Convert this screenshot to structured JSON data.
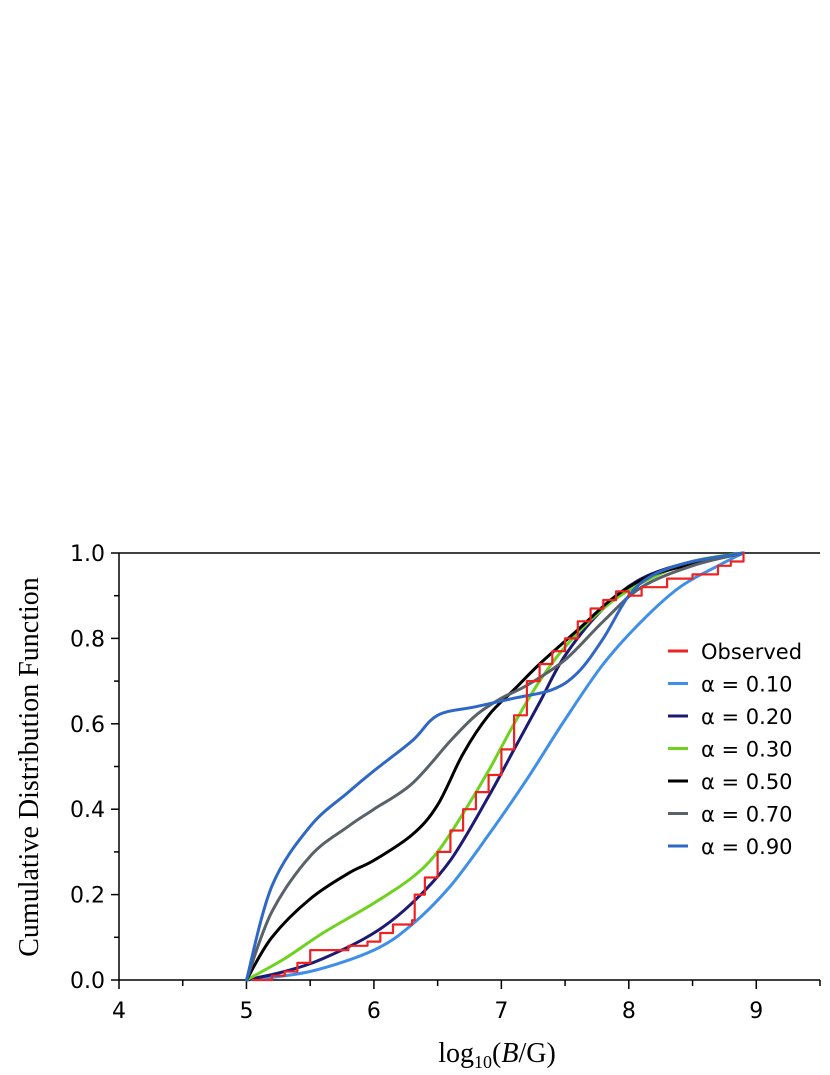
{
  "chart_data": {
    "type": "line",
    "title": "",
    "xlabel": "log10(B/G)",
    "ylabel": "Cumulative Distribution Function",
    "xlim": [
      4,
      9.5
    ],
    "ylim": [
      0,
      1.0
    ],
    "xticks": [
      "4",
      "5",
      "6",
      "7",
      "8",
      "9"
    ],
    "xtick_values": [
      4,
      5,
      6,
      7,
      8,
      9
    ],
    "yticks": [
      "0.0",
      "0.2",
      "0.4",
      "0.6",
      "0.8",
      "1.0"
    ],
    "ytick_values": [
      0,
      0.2,
      0.4,
      0.6,
      0.8,
      1.0
    ],
    "legend_position": "right",
    "series": [
      {
        "name": "Observed",
        "color": "#ee2222",
        "step": true,
        "x": [
          5.05,
          5.2,
          5.3,
          5.4,
          5.5,
          5.8,
          5.95,
          6.05,
          6.15,
          6.3,
          6.32,
          6.4,
          6.5,
          6.6,
          6.7,
          6.8,
          6.9,
          7.0,
          7.1,
          7.2,
          7.3,
          7.4,
          7.5,
          7.6,
          7.7,
          7.8,
          7.9,
          8.0,
          8.1,
          8.3,
          8.5,
          8.7,
          8.8,
          8.9
        ],
        "y": [
          0.0,
          0.01,
          0.02,
          0.04,
          0.07,
          0.08,
          0.09,
          0.11,
          0.13,
          0.14,
          0.2,
          0.24,
          0.3,
          0.35,
          0.4,
          0.44,
          0.48,
          0.54,
          0.62,
          0.7,
          0.74,
          0.77,
          0.8,
          0.84,
          0.87,
          0.89,
          0.91,
          0.9,
          0.92,
          0.94,
          0.95,
          0.97,
          0.98,
          1.0
        ]
      },
      {
        "name": "α = 0.10",
        "color": "#3f8fe8",
        "x": [
          5.0,
          5.5,
          6.0,
          6.3,
          6.6,
          6.9,
          7.2,
          7.5,
          7.8,
          8.1,
          8.4,
          8.7,
          8.9
        ],
        "y": [
          0.0,
          0.02,
          0.07,
          0.13,
          0.22,
          0.34,
          0.47,
          0.61,
          0.74,
          0.84,
          0.92,
          0.97,
          1.0
        ]
      },
      {
        "name": "α = 0.20",
        "color": "#1c1a72",
        "x": [
          5.0,
          5.3,
          5.6,
          6.0,
          6.3,
          6.6,
          6.9,
          7.1,
          7.3,
          7.5,
          7.8,
          8.1,
          8.5,
          8.9
        ],
        "y": [
          0.0,
          0.02,
          0.05,
          0.11,
          0.18,
          0.28,
          0.43,
          0.54,
          0.65,
          0.76,
          0.87,
          0.94,
          0.98,
          1.0
        ]
      },
      {
        "name": "α = 0.30",
        "color": "#6ed21e",
        "x": [
          5.0,
          5.3,
          5.6,
          6.0,
          6.3,
          6.5,
          6.7,
          6.9,
          7.1,
          7.3,
          7.5,
          7.8,
          8.1,
          8.5,
          8.9
        ],
        "y": [
          0.0,
          0.05,
          0.11,
          0.18,
          0.24,
          0.3,
          0.39,
          0.49,
          0.6,
          0.7,
          0.78,
          0.87,
          0.93,
          0.98,
          1.0
        ]
      },
      {
        "name": "α = 0.50",
        "color": "#000000",
        "x": [
          5.0,
          5.2,
          5.5,
          5.8,
          6.0,
          6.3,
          6.5,
          6.7,
          6.9,
          7.1,
          7.3,
          7.6,
          7.9,
          8.2,
          8.6,
          8.9
        ],
        "y": [
          0.0,
          0.1,
          0.19,
          0.25,
          0.28,
          0.34,
          0.41,
          0.53,
          0.62,
          0.68,
          0.74,
          0.82,
          0.9,
          0.95,
          0.98,
          1.0
        ]
      },
      {
        "name": "α = 0.70",
        "color": "#5a6268",
        "x": [
          5.0,
          5.2,
          5.5,
          5.8,
          6.0,
          6.3,
          6.6,
          6.8,
          7.0,
          7.2,
          7.5,
          7.8,
          8.1,
          8.5,
          8.9
        ],
        "y": [
          0.0,
          0.16,
          0.29,
          0.36,
          0.4,
          0.46,
          0.56,
          0.62,
          0.66,
          0.69,
          0.75,
          0.84,
          0.92,
          0.97,
          1.0
        ]
      },
      {
        "name": "α = 0.90",
        "color": "#2e67c6",
        "x": [
          5.0,
          5.2,
          5.5,
          5.8,
          6.0,
          6.3,
          6.5,
          6.8,
          7.1,
          7.4,
          7.6,
          7.8,
          8.0,
          8.2,
          8.5,
          8.9
        ],
        "y": [
          0.0,
          0.22,
          0.36,
          0.44,
          0.49,
          0.56,
          0.62,
          0.64,
          0.66,
          0.68,
          0.72,
          0.8,
          0.9,
          0.95,
          0.98,
          1.0
        ]
      }
    ]
  }
}
